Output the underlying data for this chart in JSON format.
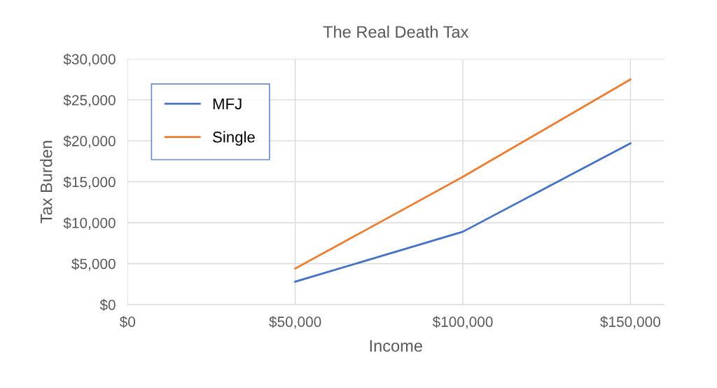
{
  "chart_data": {
    "type": "line",
    "title": "The Real Death Tax",
    "xlabel": "Income",
    "ylabel": "Tax Burden",
    "x": [
      50000,
      100000,
      150000
    ],
    "series": [
      {
        "name": "MFJ",
        "color": "#4472c4",
        "values": [
          2800,
          8900,
          19700
        ]
      },
      {
        "name": "Single",
        "color": "#ed7d31",
        "values": [
          4400,
          15600,
          27500
        ]
      }
    ],
    "xlim": [
      0,
      160000
    ],
    "xticks": [
      {
        "value": 0,
        "label": "$0"
      },
      {
        "value": 50000,
        "label": "$50,000"
      },
      {
        "value": 100000,
        "label": "$100,000"
      },
      {
        "value": 150000,
        "label": "$150,000"
      }
    ],
    "ylim": [
      0,
      30000
    ],
    "yticks": [
      {
        "value": 0,
        "label": "$0"
      },
      {
        "value": 5000,
        "label": "$5,000"
      },
      {
        "value": 10000,
        "label": "$10,000"
      },
      {
        "value": 15000,
        "label": "$15,000"
      },
      {
        "value": 20000,
        "label": "$20,000"
      },
      {
        "value": 25000,
        "label": "$25,000"
      },
      {
        "value": 30000,
        "label": "$30,000"
      }
    ],
    "grid": true,
    "legend": "top left",
    "marker": "none",
    "line_style": "solid"
  }
}
